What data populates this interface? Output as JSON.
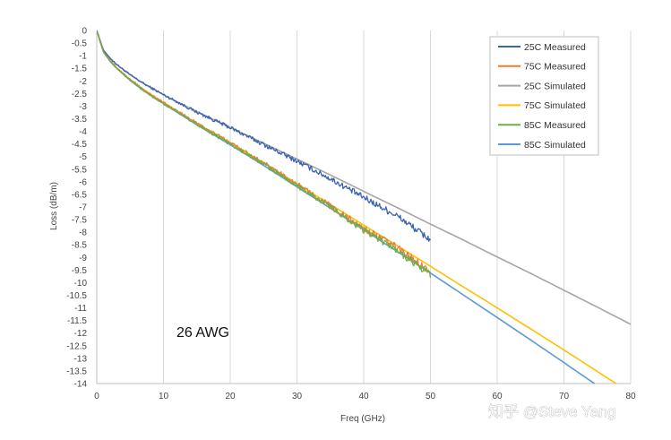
{
  "chart_data": {
    "type": "line",
    "xlabel": "Freq (GHz)",
    "ylabel": "Loss (dB/m)",
    "xlim": [
      0,
      80
    ],
    "ylim": [
      -14,
      0
    ],
    "xticks": [
      0,
      10,
      20,
      30,
      40,
      50,
      60,
      70,
      80
    ],
    "yticks": [
      0,
      -0.5,
      -1,
      -1.5,
      -2,
      -2.5,
      -3,
      -3.5,
      -4,
      -4.5,
      -5,
      -5.5,
      -6,
      -6.5,
      -7,
      -7.5,
      -8,
      -8.5,
      -9,
      -9.5,
      -10,
      -10.5,
      -11,
      -11.5,
      -12,
      -12.5,
      -13,
      -13.5,
      -14
    ],
    "grid": "vertical",
    "legend_position": "top-right",
    "annotation": "26 AWG",
    "series": [
      {
        "name": "25C Measured",
        "color": "#3b64ad",
        "x": [
          0,
          1,
          2,
          3,
          5,
          7,
          10,
          15,
          20,
          25,
          30,
          35,
          40,
          45,
          50
        ],
        "y": [
          0,
          -0.78,
          -1.1,
          -1.35,
          -1.76,
          -2.1,
          -2.55,
          -3.24,
          -3.85,
          -4.52,
          -5.18,
          -5.88,
          -6.62,
          -7.35,
          -8.3
        ],
        "noisy": true
      },
      {
        "name": "75C Measured",
        "color": "#ed7d31",
        "x": [
          0,
          1,
          2,
          3,
          5,
          7,
          10,
          15,
          20,
          25,
          30,
          35,
          40,
          45,
          50
        ],
        "y": [
          0,
          -0.84,
          -1.2,
          -1.48,
          -1.95,
          -2.34,
          -2.86,
          -3.68,
          -4.45,
          -5.25,
          -6.1,
          -6.95,
          -7.85,
          -8.6,
          -9.55
        ],
        "noisy": true
      },
      {
        "name": "25C Simulated",
        "color": "#a5a5a5",
        "x": [
          0,
          1,
          2,
          3,
          5,
          7,
          10,
          15,
          20,
          25,
          30,
          35,
          40,
          45,
          50,
          55,
          60,
          65,
          70,
          75,
          80
        ],
        "y": [
          0,
          -0.78,
          -1.1,
          -1.35,
          -1.76,
          -2.1,
          -2.55,
          -3.22,
          -3.85,
          -4.47,
          -5.1,
          -5.73,
          -6.38,
          -7.02,
          -7.68,
          -8.32,
          -8.98,
          -9.63,
          -10.3,
          -10.97,
          -11.65
        ]
      },
      {
        "name": "75C Simulated",
        "color": "#ffc000",
        "x": [
          0,
          1,
          2,
          3,
          5,
          7,
          10,
          15,
          20,
          25,
          30,
          35,
          40,
          45,
          50,
          55,
          60,
          65,
          70,
          75,
          80
        ],
        "y": [
          0,
          -0.84,
          -1.2,
          -1.48,
          -1.95,
          -2.34,
          -2.86,
          -3.68,
          -4.45,
          -5.25,
          -6.08,
          -6.9,
          -7.72,
          -8.53,
          -9.35,
          -10.18,
          -11.0,
          -11.83,
          -12.67,
          -13.52,
          -14.38
        ]
      },
      {
        "name": "85C Measured",
        "color": "#70ad47",
        "x": [
          0,
          1,
          2,
          3,
          5,
          7,
          10,
          15,
          20,
          25,
          30,
          35,
          40,
          45,
          50
        ],
        "y": [
          0,
          -0.85,
          -1.22,
          -1.5,
          -1.98,
          -2.38,
          -2.9,
          -3.72,
          -4.5,
          -5.3,
          -6.15,
          -7.0,
          -7.92,
          -8.72,
          -9.7
        ],
        "noisy": true
      },
      {
        "name": "85C Simulated",
        "color": "#5b9bd5",
        "x": [
          0,
          1,
          2,
          3,
          5,
          7,
          10,
          15,
          20,
          25,
          30,
          35,
          40,
          45,
          50,
          55,
          60,
          65,
          70,
          75,
          80
        ],
        "y": [
          0,
          -0.85,
          -1.22,
          -1.5,
          -1.98,
          -2.38,
          -2.9,
          -3.74,
          -4.53,
          -5.35,
          -6.2,
          -7.05,
          -7.9,
          -8.76,
          -9.62,
          -10.5,
          -11.38,
          -12.27,
          -13.17,
          -14.08,
          -15.0
        ]
      }
    ]
  },
  "watermark": "知乎 @Steve Yang"
}
